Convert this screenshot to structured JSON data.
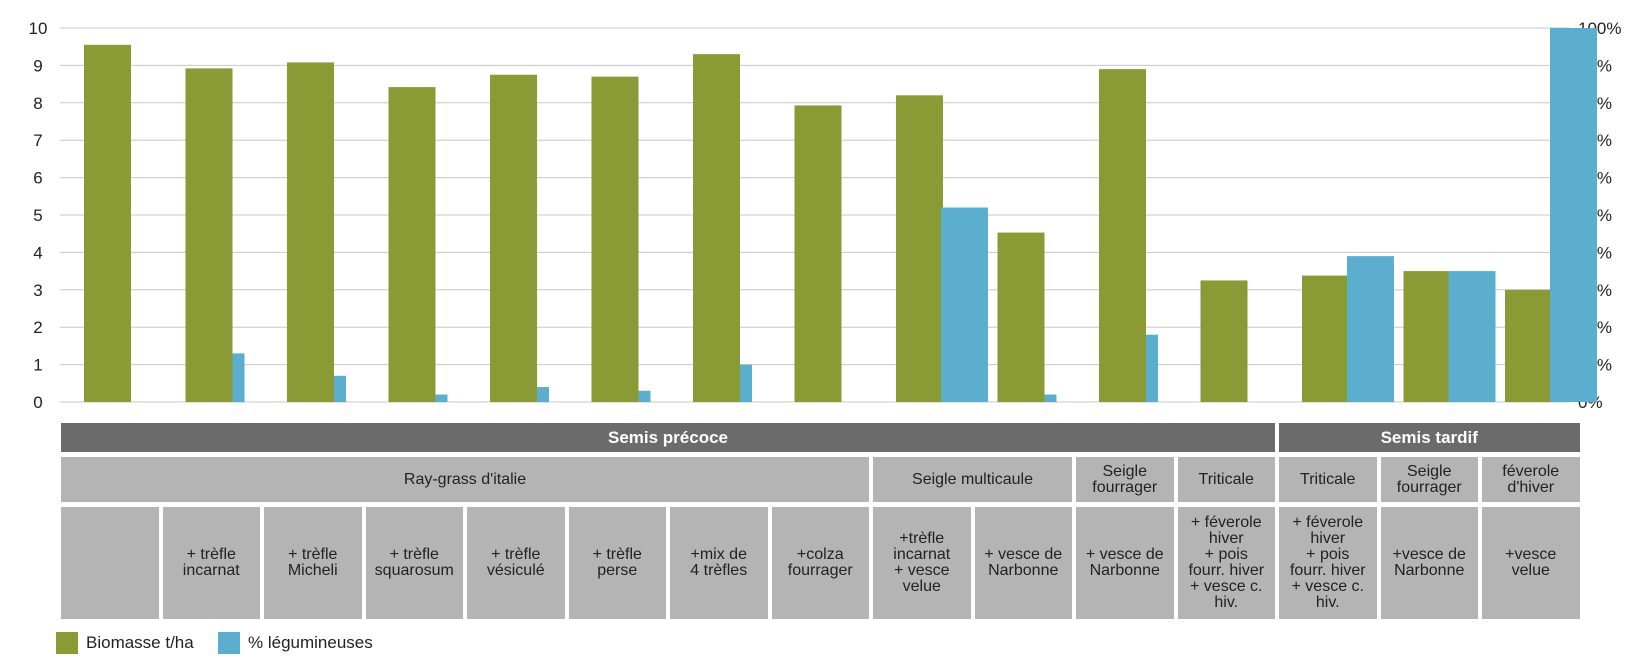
{
  "chart_data": {
    "type": "bar",
    "left_axis": {
      "ylim": [
        0,
        10
      ],
      "ticks": [
        "0",
        "1",
        "2",
        "3",
        "4",
        "5",
        "6",
        "7",
        "8",
        "9",
        "10"
      ]
    },
    "right_axis": {
      "ylim": [
        0,
        100
      ],
      "ticks": [
        "0%",
        "10%",
        "20%",
        "30%",
        "40%",
        "50%",
        "60%",
        "70%",
        "80%",
        "90%",
        "100%"
      ]
    },
    "grid": true,
    "legend_position": "bottom-left",
    "series": [
      {
        "name": "Biomasse t/ha",
        "axis": "left",
        "color": "#8a9a35",
        "values": [
          9.55,
          8.92,
          9.08,
          8.42,
          8.75,
          8.7,
          9.3,
          7.93,
          8.2,
          4.53,
          8.9,
          3.25,
          3.38,
          3.5,
          3.0
        ]
      },
      {
        "name": "% légumineuses",
        "axis": "right",
        "color": "#5baecd",
        "values": [
          0,
          13,
          7,
          2,
          4,
          3,
          10,
          0,
          52,
          2,
          18,
          0,
          39,
          35,
          100
        ]
      }
    ],
    "categories": [
      "",
      "+ trèfle\nincarnat",
      "+ trèfle\nMicheli",
      "+ trèfle\nsquarosum",
      "+ trèfle\nvésiculé",
      "+ trèfle\nperse",
      "+mix de\n4 trèfles",
      "+colza\nfourrager",
      "+trèfle\nincarnat\n+ vesce\nvelue",
      "+ vesce de\nNarbonne",
      "+ vesce de\nNarbonne",
      "+ féverole\nhiver\n+ pois\nfourr. hiver\n+ vesce c.\nhiv.",
      "+ féverole\nhiver\n+ pois\nfourr. hiver\n+ vesce c.\nhiv.",
      "+vesce de\nNarbonne",
      "+vesce\nvelue"
    ],
    "groups": [
      {
        "label": "Ray-grass d'italie",
        "span": 8
      },
      {
        "label": "Seigle multicaule",
        "span": 2
      },
      {
        "label": "Seigle\nfourrager",
        "span": 1
      },
      {
        "label": "Triticale",
        "span": 1
      },
      {
        "label": "Triticale",
        "span": 1
      },
      {
        "label": "Seigle\nfourrager",
        "span": 1
      },
      {
        "label": "féverole\nd'hiver",
        "span": 1
      }
    ],
    "periods": [
      {
        "label": "Semis précoce",
        "span": 12
      },
      {
        "label": "Semis tardif",
        "span": 3
      }
    ]
  }
}
